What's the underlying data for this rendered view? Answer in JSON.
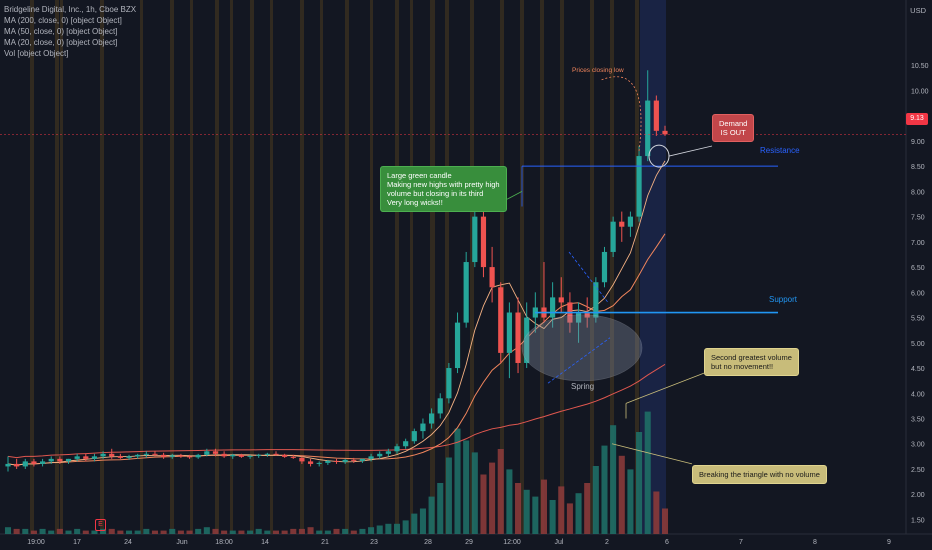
{
  "legend": {
    "title": "Bridgeline Digital, Inc., 1h, Cboe BZX",
    "ma200": "MA (200, close, 0) [object Object]",
    "ma50": "MA (50, close, 0) [object Object]",
    "ma20": "MA (20, close, 0) [object Object]",
    "vol": "Vol [object Object]"
  },
  "price_axis": {
    "currency": "USD",
    "current_price": "9.13",
    "ticks": [
      "10.50",
      "10.00",
      "9.50",
      "9.00",
      "8.50",
      "8.00",
      "7.50",
      "7.00",
      "6.50",
      "6.00",
      "5.50",
      "5.00",
      "4.50",
      "4.00",
      "3.50",
      "3.00",
      "2.50",
      "2.00",
      "1.50"
    ]
  },
  "time_axis": {
    "ticks": [
      "19:00",
      "17",
      "24",
      "Jun",
      "18:00",
      "14",
      "21",
      "23",
      "28",
      "29",
      "12:00",
      "Jul",
      "2",
      "6",
      "7",
      "8",
      "9"
    ]
  },
  "annotations": {
    "large_green_candle": "Large green candle\nMaking new highs with pretty high\nvolume but closing in its third\nVery long wicks!!",
    "demand_out": "Demand\nIS OUT",
    "prices_closing_low": "Prices closing low",
    "resistance": "Resistance",
    "support": "Support",
    "spring": "Spring",
    "second_volume": "Second greatest volume\nbut no movement!!",
    "breaking_triangle": "Breaking the triangle with no volume",
    "earnings_marker": "E"
  },
  "colors": {
    "up": "#26a69a",
    "down": "#ef5350",
    "resistance": "#2962ff",
    "support": "#2196f3",
    "ma200": "#e0574f",
    "ma50": "#f0855c",
    "ma20": "#f4b183",
    "background": "#131722"
  },
  "chart_data": {
    "type": "candlestick",
    "title": "Bridgeline Digital, Inc., 1h, Cboe BZX",
    "ylabel": "USD",
    "ylim": [
      1.35,
      11.0
    ],
    "current_price": 9.13,
    "resistance_level": 8.5,
    "support_level": 5.6,
    "x_ticks": [
      "19:00",
      "17",
      "24",
      "Jun",
      "18:00",
      "14",
      "21",
      "23",
      "28",
      "29",
      "12:00",
      "Jul",
      "2",
      "6",
      "7",
      "8",
      "9"
    ],
    "candles": [
      [
        2.55,
        2.75,
        2.45,
        2.6
      ],
      [
        2.6,
        2.7,
        2.5,
        2.55
      ],
      [
        2.55,
        2.7,
        2.5,
        2.65
      ],
      [
        2.65,
        2.7,
        2.55,
        2.6
      ],
      [
        2.6,
        2.7,
        2.55,
        2.65
      ],
      [
        2.65,
        2.75,
        2.6,
        2.7
      ],
      [
        2.7,
        2.75,
        2.6,
        2.65
      ],
      [
        2.65,
        2.7,
        2.6,
        2.7
      ],
      [
        2.7,
        2.8,
        2.65,
        2.75
      ],
      [
        2.75,
        2.8,
        2.65,
        2.7
      ],
      [
        2.7,
        2.8,
        2.65,
        2.75
      ],
      [
        2.75,
        2.85,
        2.7,
        2.8
      ],
      [
        2.8,
        2.9,
        2.7,
        2.75
      ],
      [
        2.75,
        2.8,
        2.7,
        2.72
      ],
      [
        2.72,
        2.78,
        2.68,
        2.75
      ],
      [
        2.75,
        2.8,
        2.7,
        2.78
      ],
      [
        2.78,
        2.85,
        2.72,
        2.8
      ],
      [
        2.8,
        2.85,
        2.75,
        2.78
      ],
      [
        2.78,
        2.82,
        2.7,
        2.74
      ],
      [
        2.74,
        2.8,
        2.7,
        2.77
      ],
      [
        2.77,
        2.8,
        2.72,
        2.75
      ],
      [
        2.75,
        2.78,
        2.7,
        2.73
      ],
      [
        2.73,
        2.8,
        2.7,
        2.78
      ],
      [
        2.78,
        2.9,
        2.75,
        2.85
      ],
      [
        2.85,
        2.9,
        2.75,
        2.8
      ],
      [
        2.8,
        2.85,
        2.72,
        2.75
      ],
      [
        2.75,
        2.8,
        2.7,
        2.78
      ],
      [
        2.78,
        2.8,
        2.72,
        2.74
      ],
      [
        2.74,
        2.78,
        2.7,
        2.76
      ],
      [
        2.76,
        2.8,
        2.72,
        2.78
      ],
      [
        2.78,
        2.82,
        2.74,
        2.8
      ],
      [
        2.8,
        2.85,
        2.76,
        2.78
      ],
      [
        2.78,
        2.8,
        2.72,
        2.74
      ],
      [
        2.74,
        2.78,
        2.7,
        2.72
      ],
      [
        2.72,
        2.75,
        2.6,
        2.65
      ],
      [
        2.65,
        2.7,
        2.55,
        2.6
      ],
      [
        2.6,
        2.65,
        2.55,
        2.62
      ],
      [
        2.62,
        2.68,
        2.58,
        2.66
      ],
      [
        2.66,
        2.7,
        2.6,
        2.64
      ],
      [
        2.64,
        2.7,
        2.6,
        2.68
      ],
      [
        2.68,
        2.72,
        2.62,
        2.66
      ],
      [
        2.66,
        2.7,
        2.62,
        2.7
      ],
      [
        2.7,
        2.8,
        2.65,
        2.75
      ],
      [
        2.75,
        2.85,
        2.7,
        2.8
      ],
      [
        2.8,
        2.9,
        2.75,
        2.85
      ],
      [
        2.85,
        3.0,
        2.8,
        2.95
      ],
      [
        2.95,
        3.1,
        2.9,
        3.05
      ],
      [
        3.05,
        3.3,
        3.0,
        3.25
      ],
      [
        3.25,
        3.5,
        3.1,
        3.4
      ],
      [
        3.4,
        3.7,
        3.3,
        3.6
      ],
      [
        3.6,
        4.0,
        3.5,
        3.9
      ],
      [
        3.9,
        4.6,
        3.8,
        4.5
      ],
      [
        4.5,
        5.6,
        4.4,
        5.4
      ],
      [
        5.4,
        6.8,
        5.3,
        6.6
      ],
      [
        6.6,
        7.7,
        6.5,
        7.5
      ],
      [
        7.5,
        7.8,
        6.3,
        6.5
      ],
      [
        6.5,
        6.9,
        5.8,
        6.1
      ],
      [
        6.1,
        6.2,
        4.6,
        4.8
      ],
      [
        4.8,
        5.8,
        4.3,
        5.6
      ],
      [
        5.6,
        5.9,
        4.4,
        4.6
      ],
      [
        4.6,
        5.8,
        4.5,
        5.5
      ],
      [
        5.5,
        6.0,
        5.2,
        5.7
      ],
      [
        5.7,
        6.6,
        5.4,
        5.5
      ],
      [
        5.5,
        6.2,
        5.3,
        5.9
      ],
      [
        5.9,
        6.3,
        5.6,
        5.8
      ],
      [
        5.8,
        6.0,
        5.2,
        5.4
      ],
      [
        5.4,
        5.8,
        5.0,
        5.6
      ],
      [
        5.6,
        5.9,
        5.3,
        5.5
      ],
      [
        5.5,
        6.3,
        5.4,
        6.2
      ],
      [
        6.2,
        6.9,
        6.1,
        6.8
      ],
      [
        6.8,
        7.5,
        6.7,
        7.4
      ],
      [
        7.4,
        7.6,
        7.0,
        7.3
      ],
      [
        7.3,
        7.6,
        7.1,
        7.5
      ],
      [
        7.5,
        8.9,
        7.4,
        8.7
      ],
      [
        8.7,
        10.4,
        8.6,
        9.8
      ],
      [
        9.8,
        9.9,
        9.1,
        9.2
      ],
      [
        9.2,
        9.3,
        9.1,
        9.13
      ]
    ],
    "volumes": [
      0.04,
      0.03,
      0.03,
      0.02,
      0.03,
      0.02,
      0.03,
      0.02,
      0.03,
      0.02,
      0.02,
      0.03,
      0.03,
      0.02,
      0.02,
      0.02,
      0.03,
      0.02,
      0.02,
      0.03,
      0.02,
      0.02,
      0.03,
      0.04,
      0.03,
      0.02,
      0.02,
      0.02,
      0.02,
      0.03,
      0.02,
      0.02,
      0.02,
      0.03,
      0.03,
      0.04,
      0.02,
      0.02,
      0.03,
      0.03,
      0.02,
      0.03,
      0.04,
      0.05,
      0.06,
      0.06,
      0.08,
      0.12,
      0.15,
      0.22,
      0.3,
      0.45,
      0.62,
      0.55,
      0.48,
      0.35,
      0.42,
      0.5,
      0.38,
      0.3,
      0.26,
      0.22,
      0.32,
      0.2,
      0.28,
      0.18,
      0.24,
      0.3,
      0.4,
      0.52,
      0.64,
      0.46,
      0.38,
      0.6,
      0.72,
      0.25,
      0.15
    ]
  }
}
